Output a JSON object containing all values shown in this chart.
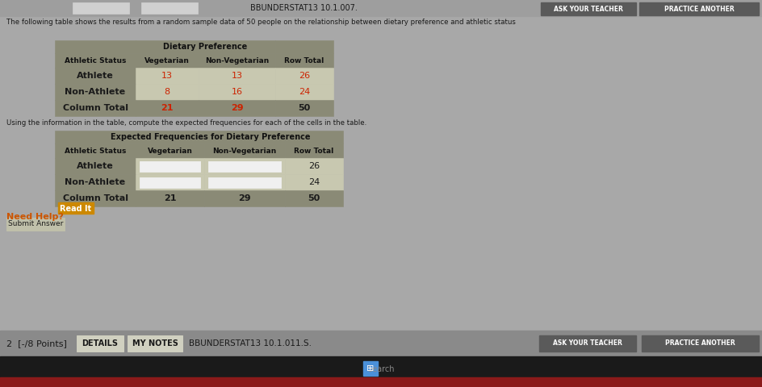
{
  "background_color": "#a8a8a8",
  "top_text": "The following table shows the results from a random sample data of 50 people on the relationship between dietary preference and athletic status",
  "middle_text": "Using the information in the table, compute the expected frequencies for each of the cells in the table.",
  "need_help_text": "Need Help?",
  "read_it_text": "Read It",
  "submit_text": "Submit Answer",
  "bottom_label": "2  [-/8 Points]",
  "details_text": "DETAILS",
  "my_notes_text": "MY NOTES",
  "bbunderstat_text": "BBUNDERSTAT13 10.1.011.S.",
  "bbunderstat_top": "BBUNDERSTAT13 10.1.007.",
  "table1_header_merged": "Dietary Preference",
  "table1_col_headers": [
    "Athletic Status",
    "Vegetarian",
    "Non-Vegetarian",
    "Row Total"
  ],
  "table1_rows": [
    [
      "Athlete",
      "13",
      "13",
      "26"
    ],
    [
      "Non-Athlete",
      "8",
      "16",
      "24"
    ],
    [
      "Column Total",
      "21",
      "29",
      "50"
    ]
  ],
  "table1_red_cells": [
    [
      0,
      1
    ],
    [
      0,
      2
    ],
    [
      0,
      3
    ],
    [
      1,
      1
    ],
    [
      1,
      2
    ],
    [
      1,
      3
    ],
    [
      2,
      1
    ],
    [
      2,
      2
    ]
  ],
  "table2_header_merged": "Expected Frequencies for Dietary Preference",
  "table2_col_headers": [
    "Athletic Status",
    "Vegetarian",
    "Non-Vegetarian",
    "Row Total"
  ],
  "table2_rows": [
    [
      "Athlete",
      "",
      "",
      "26"
    ],
    [
      "Non-Athlete",
      "",
      "",
      "24"
    ],
    [
      "Column Total",
      "21",
      "29",
      "50"
    ]
  ],
  "table2_input_cells": [
    [
      0,
      1
    ],
    [
      0,
      2
    ],
    [
      1,
      1
    ],
    [
      1,
      2
    ]
  ],
  "header_bg": "#8a8a76",
  "row_bg_light": "#c8c8b0",
  "red_color": "#cc2200",
  "text_color_dark": "#1a1a1a",
  "header_text_color": "#111111",
  "top_strip_color": "#9a9a9a",
  "btn_bg": "#6a6a6a",
  "ask_teacher_bg": "#5a5a5a",
  "need_help_color": "#cc5500",
  "read_it_bg": "#cc8800",
  "submit_btn_bg": "#c0c0aa",
  "bottom_bar_color": "#2a2a2a",
  "taskbar_color": "#1a1a1a",
  "taskbar_red": "#8b1a1a",
  "white_input": "#f0f0f0"
}
